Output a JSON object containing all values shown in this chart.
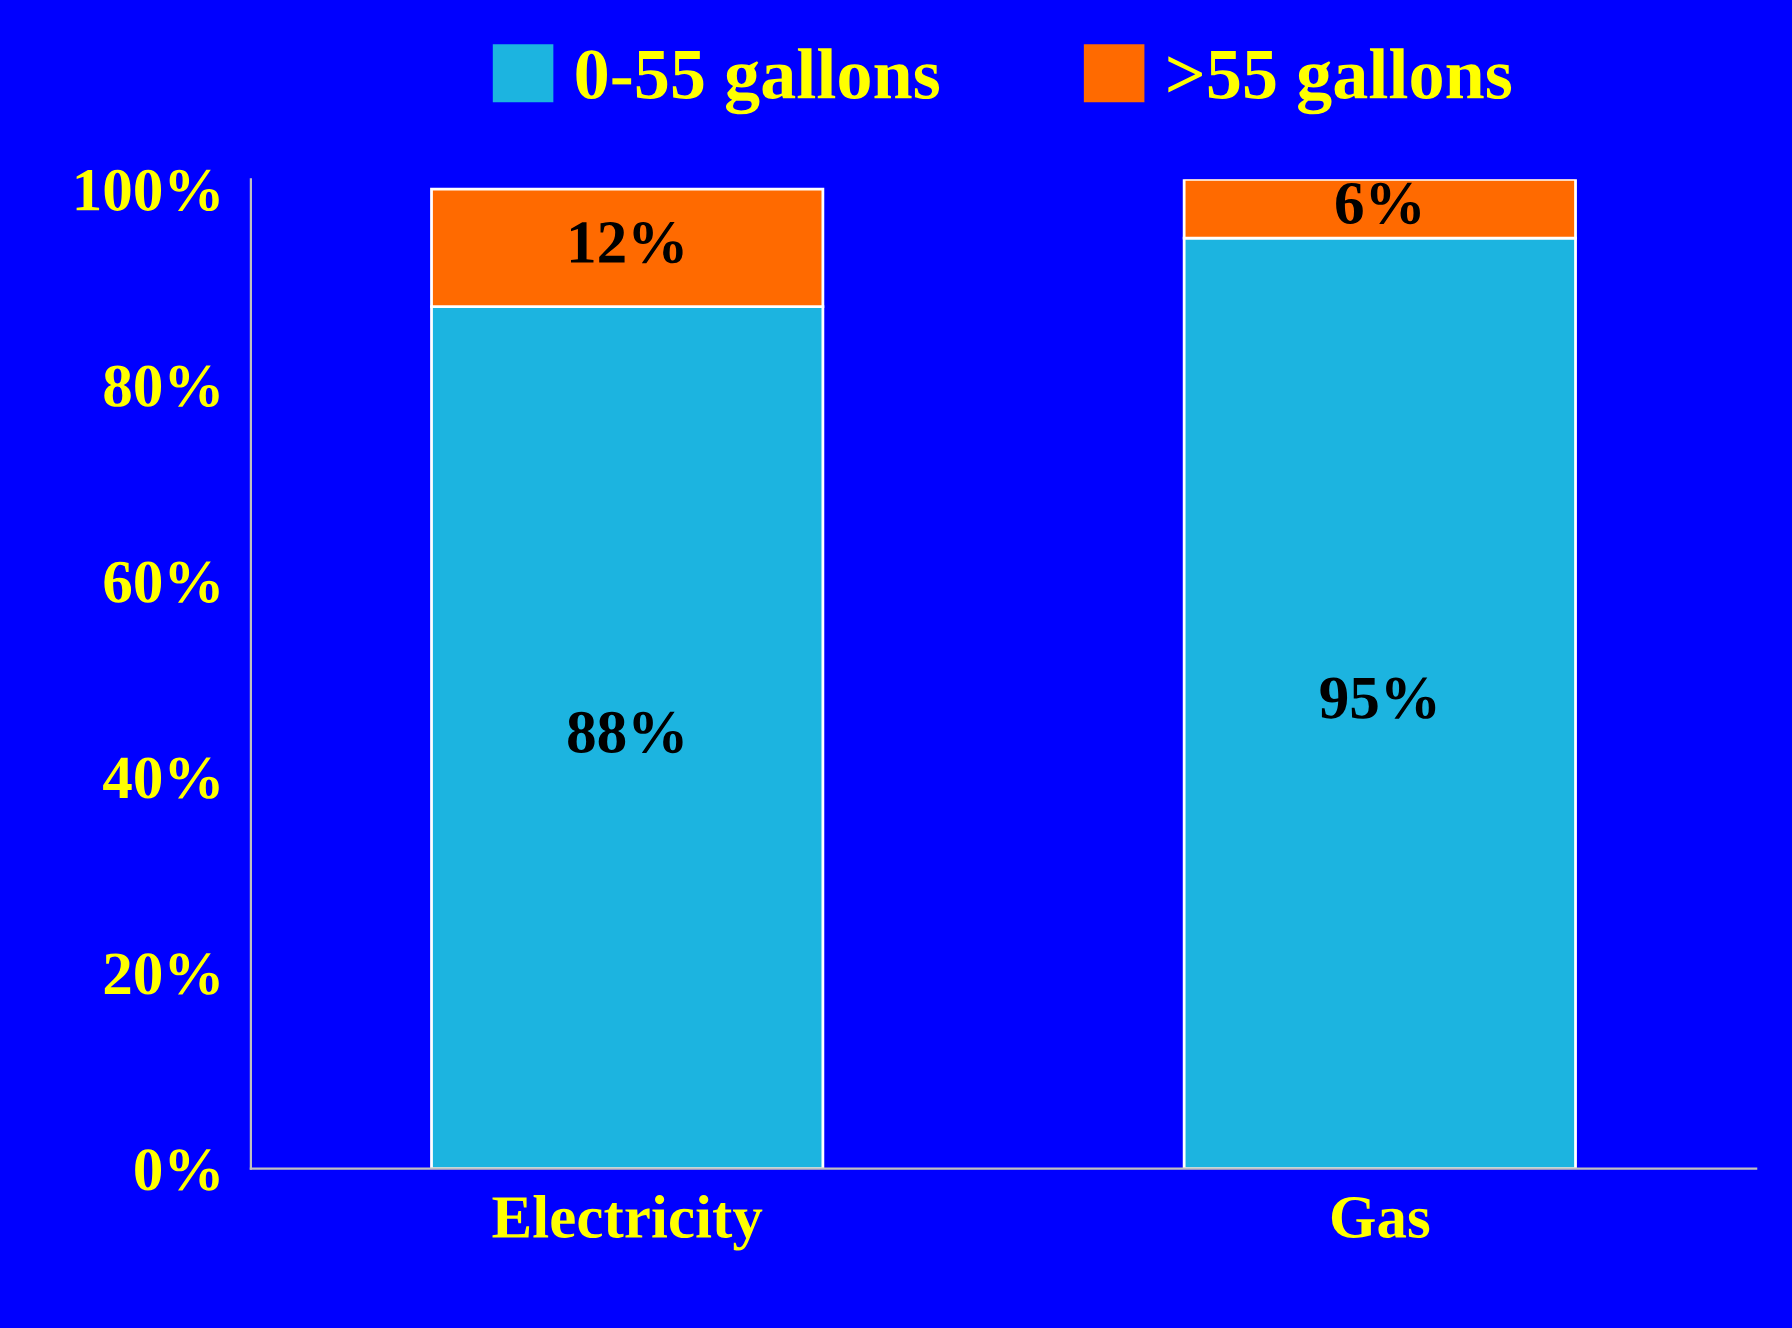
{
  "chart_data": {
    "type": "bar",
    "stacked": true,
    "categories": [
      "Electricity",
      "Gas"
    ],
    "series": [
      {
        "name": "0-55 gallons",
        "color": "#1cb4e0",
        "values": [
          88,
          95
        ],
        "value_labels": [
          "88%",
          "95%"
        ]
      },
      {
        "name": ">55 gallons",
        "color": "#ff6a00",
        "values": [
          12,
          6
        ],
        "value_labels": [
          "12%",
          "6%"
        ]
      }
    ],
    "ylim": [
      0,
      101
    ],
    "yticks": [
      {
        "value": 0,
        "label": "0%"
      },
      {
        "value": 20,
        "label": "20%"
      },
      {
        "value": 40,
        "label": "40%"
      },
      {
        "value": 60,
        "label": "60%"
      },
      {
        "value": 80,
        "label": "80%"
      },
      {
        "value": 100,
        "label": "100%"
      }
    ],
    "grid": false,
    "legend": "top"
  }
}
